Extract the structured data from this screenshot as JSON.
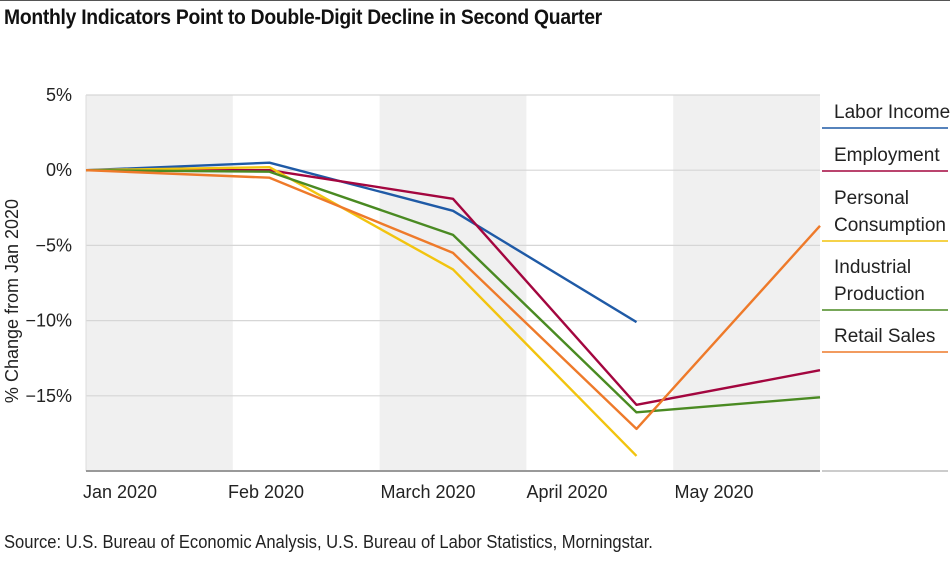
{
  "title": "Monthly Indicators Point to Double-Digit Decline in Second Quarter",
  "source": "Source: U.S. Bureau of Economic Analysis, U.S. Bureau of Labor Statistics, Morningstar.",
  "chart_data": {
    "type": "line",
    "ylabel": "% Change from Jan 2020",
    "xlabel": "",
    "categories": [
      "Jan 2020",
      "Feb 2020",
      "March 2020",
      "April 2020",
      "May 2020"
    ],
    "ylim": [
      -20,
      5
    ],
    "yticks": [
      5,
      0,
      -5,
      -10,
      -15
    ],
    "ytick_labels": [
      "5%",
      "0%",
      "−5%",
      "−10%",
      "−15%"
    ],
    "grid": true,
    "legend_placement": "right",
    "series": [
      {
        "name": "Labor Income",
        "color": "#1f5aa6",
        "values": [
          0,
          0.5,
          -2.7,
          -10.1,
          null
        ]
      },
      {
        "name": "Employment",
        "color": "#a3063f",
        "values": [
          0,
          0,
          -1.9,
          -15.6,
          -13.3
        ]
      },
      {
        "name": "Personal Consumption",
        "label_lines": [
          "Personal",
          "Consumption"
        ],
        "color": "#f2c40f",
        "values": [
          0,
          0.2,
          -6.6,
          -19.0,
          null
        ]
      },
      {
        "name": "Industrial Production",
        "label_lines": [
          "Industrial",
          "Production"
        ],
        "color": "#4a8a22",
        "values": [
          0,
          -0.1,
          -4.3,
          -16.1,
          -15.1
        ]
      },
      {
        "name": "Retail Sales",
        "color": "#ee7a2a",
        "values": [
          0,
          -0.5,
          -5.5,
          -17.2,
          -3.7
        ]
      }
    ]
  }
}
